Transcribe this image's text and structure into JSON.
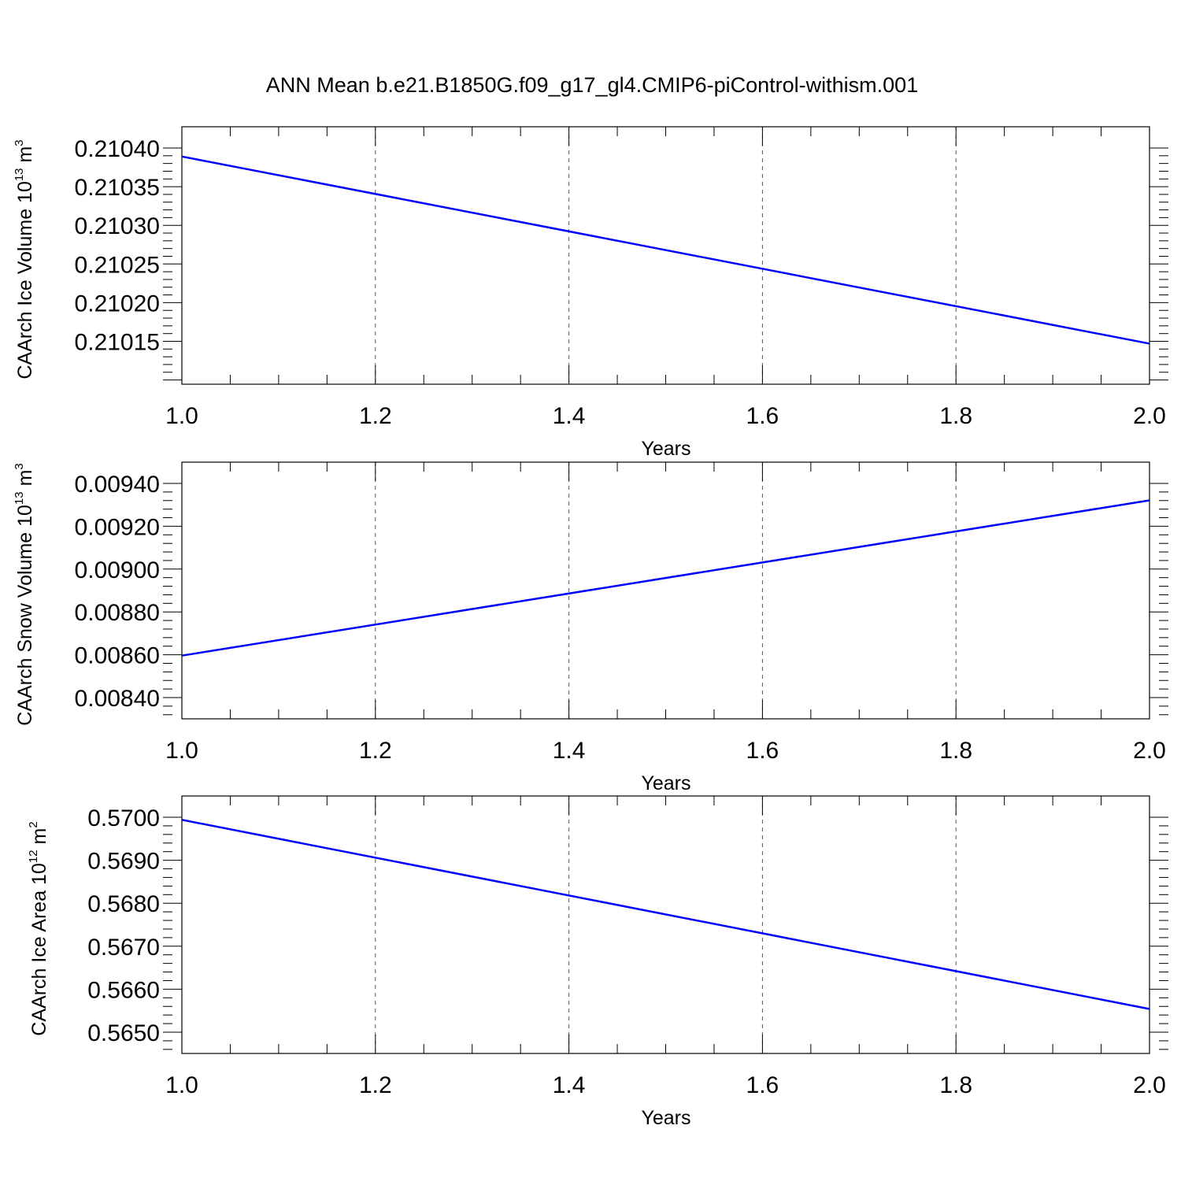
{
  "title": "ANN Mean b.e21.B1850G.f09_g17_gl4.CMIP6-piControl-withism.001",
  "colors": {
    "series": "#0000ff",
    "axes": "#000000",
    "grid": "#555555"
  },
  "chart_data": [
    {
      "type": "line",
      "xlabel": "Years",
      "ylabel": {
        "text": "CAArch Ice Volume 10",
        "exp": "13",
        "unit": " m",
        "unit_exp": "3"
      },
      "x": [
        1.0,
        2.0
      ],
      "xlim": [
        1.0,
        2.0
      ],
      "xticks": [
        1.0,
        1.2,
        1.4,
        1.6,
        1.8,
        2.0
      ],
      "xtick_labels": [
        "1.0",
        "1.2",
        "1.4",
        "1.6",
        "1.8",
        "2.0"
      ],
      "ylim": [
        0.210122,
        0.2104
      ],
      "yticks": [
        0.21015,
        0.2102,
        0.21025,
        0.2103,
        0.21035,
        0.2104
      ],
      "ytick_labels": [
        "0.21015",
        "0.21020",
        "0.21025",
        "0.21030",
        "0.21035",
        "0.21040"
      ],
      "series": [
        {
          "values": [
            0.210389,
            0.210147
          ]
        }
      ],
      "grid": "vertical dashed"
    },
    {
      "type": "line",
      "xlabel": "Years",
      "ylabel": {
        "text": "CAArch Snow Volume 10",
        "exp": "13",
        "unit": " m",
        "unit_exp": "3"
      },
      "x": [
        1.0,
        2.0
      ],
      "xlim": [
        1.0,
        2.0
      ],
      "xticks": [
        1.0,
        1.2,
        1.4,
        1.6,
        1.8,
        2.0
      ],
      "xtick_labels": [
        "1.0",
        "1.2",
        "1.4",
        "1.6",
        "1.8",
        "2.0"
      ],
      "ylim": [
        0.0084,
        0.0094
      ],
      "yticks": [
        0.0084,
        0.0086,
        0.0088,
        0.009,
        0.0092,
        0.0094
      ],
      "ytick_labels": [
        "0.00840",
        "0.00860",
        "0.00880",
        "0.00900",
        "0.00920",
        "0.00940"
      ],
      "series": [
        {
          "values": [
            0.008596,
            0.009321
          ]
        }
      ],
      "grid": "vertical dashed"
    },
    {
      "type": "line",
      "xlabel": "Years",
      "ylabel": {
        "text": "CAArch Ice Area 10",
        "exp": "12",
        "unit": " m",
        "unit_exp": "2"
      },
      "x": [
        1.0,
        2.0
      ],
      "xlim": [
        1.0,
        2.0
      ],
      "xticks": [
        1.0,
        1.2,
        1.4,
        1.6,
        1.8,
        2.0
      ],
      "xtick_labels": [
        "1.0",
        "1.2",
        "1.4",
        "1.6",
        "1.8",
        "2.0"
      ],
      "ylim": [
        0.565,
        0.57
      ],
      "yticks": [
        0.565,
        0.566,
        0.567,
        0.568,
        0.569,
        0.57
      ],
      "ytick_labels": [
        "0.5650",
        "0.5660",
        "0.5670",
        "0.5680",
        "0.5690",
        "0.5700"
      ],
      "series": [
        {
          "values": [
            0.56994,
            0.56554
          ]
        }
      ],
      "grid": "vertical dashed"
    }
  ]
}
